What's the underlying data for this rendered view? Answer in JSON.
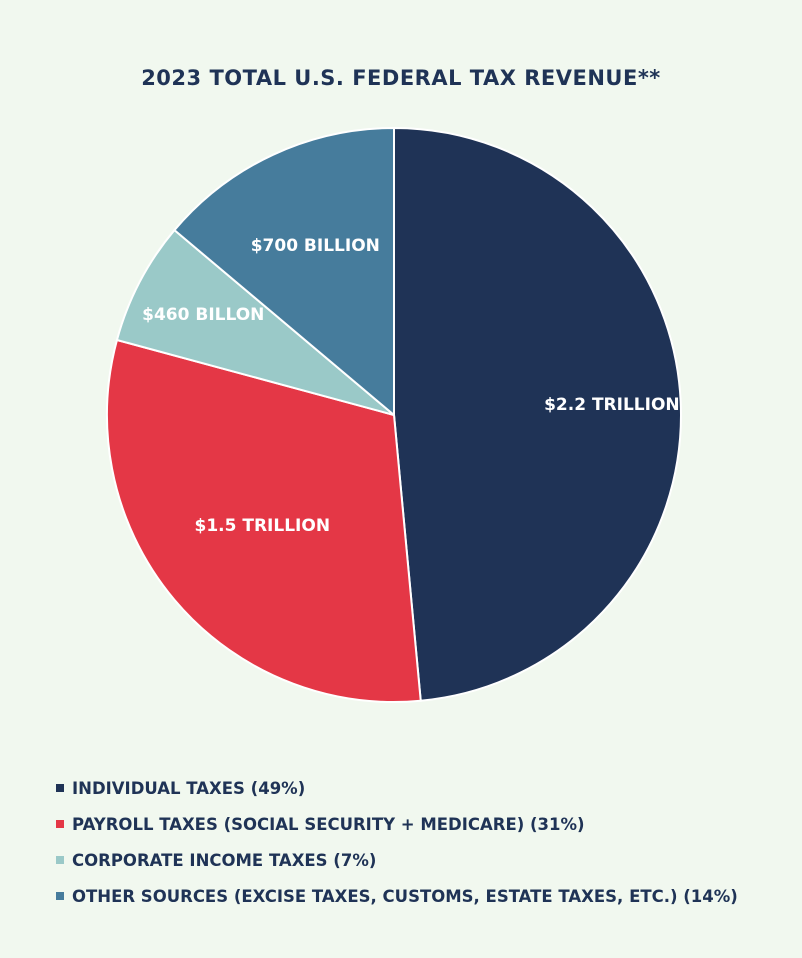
{
  "chart_data": {
    "type": "pie",
    "title": "2023 TOTAL U.S. FEDERAL TAX REVENUE**",
    "slices": [
      {
        "name": "Individual Taxes",
        "label": "$2.2 TRILLION",
        "percent": 49,
        "color": "#1f3356"
      },
      {
        "name": "Payroll Taxes",
        "label": "$1.5 TRILLION",
        "percent": 31,
        "color": "#e43746"
      },
      {
        "name": "Corporate Income Taxes",
        "label": "$460 BILLON",
        "percent": 7,
        "color": "#9ac9c8"
      },
      {
        "name": "Other Sources",
        "label": "$700 BILLION",
        "percent": 14,
        "color": "#467c9c"
      }
    ],
    "legend": [
      {
        "text": "INDIVIDUAL TAXES (49%)",
        "color": "#1f3356"
      },
      {
        "text": "PAYROLL TAXES (SOCIAL SECURITY + MEDICARE) (31%)",
        "color": "#e43746"
      },
      {
        "text": "CORPORATE INCOME TAXES (7%)",
        "color": "#9ac9c8"
      },
      {
        "text": "OTHER SOURCES (EXCISE TAXES, CUSTOMS, ESTATE TAXES, ETC.) (14%)",
        "color": "#467c9c"
      }
    ]
  }
}
